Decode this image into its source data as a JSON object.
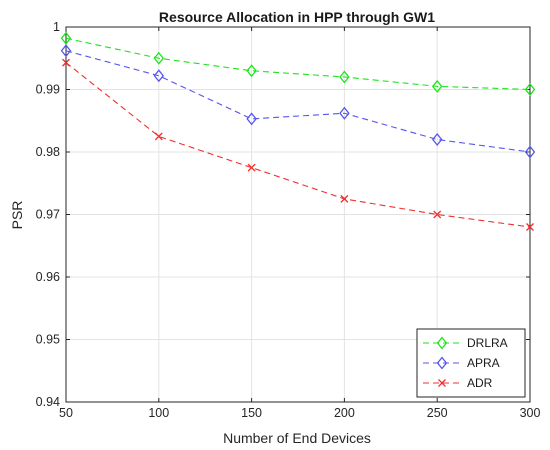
{
  "chart_data": {
    "type": "line",
    "title": "Resource Allocation in HPP through GW1",
    "xlabel": "Number of End Devices",
    "ylabel": "PSR",
    "x": [
      50,
      100,
      150,
      200,
      250,
      300
    ],
    "xlim": [
      50,
      300
    ],
    "ylim": [
      0.94,
      1.0
    ],
    "x_ticks": [
      "50",
      "100",
      "150",
      "200",
      "250",
      "300"
    ],
    "y_ticks": [
      "0.94",
      "0.95",
      "0.96",
      "0.97",
      "0.98",
      "0.99",
      "1"
    ],
    "grid": true,
    "legend_position": "bottom-right",
    "series": [
      {
        "name": "DRLRA",
        "values": [
          0.9982,
          0.995,
          0.993,
          0.992,
          0.9905,
          0.99
        ],
        "color": "#19e619",
        "marker": "diamond"
      },
      {
        "name": "APRA",
        "values": [
          0.9962,
          0.9922,
          0.9853,
          0.9862,
          0.982,
          0.98
        ],
        "color": "#5555ee",
        "marker": "diamond"
      },
      {
        "name": "ADR",
        "values": [
          0.9943,
          0.9825,
          0.9775,
          0.9725,
          0.97,
          0.968
        ],
        "color": "#ee3030",
        "marker": "x"
      }
    ]
  }
}
